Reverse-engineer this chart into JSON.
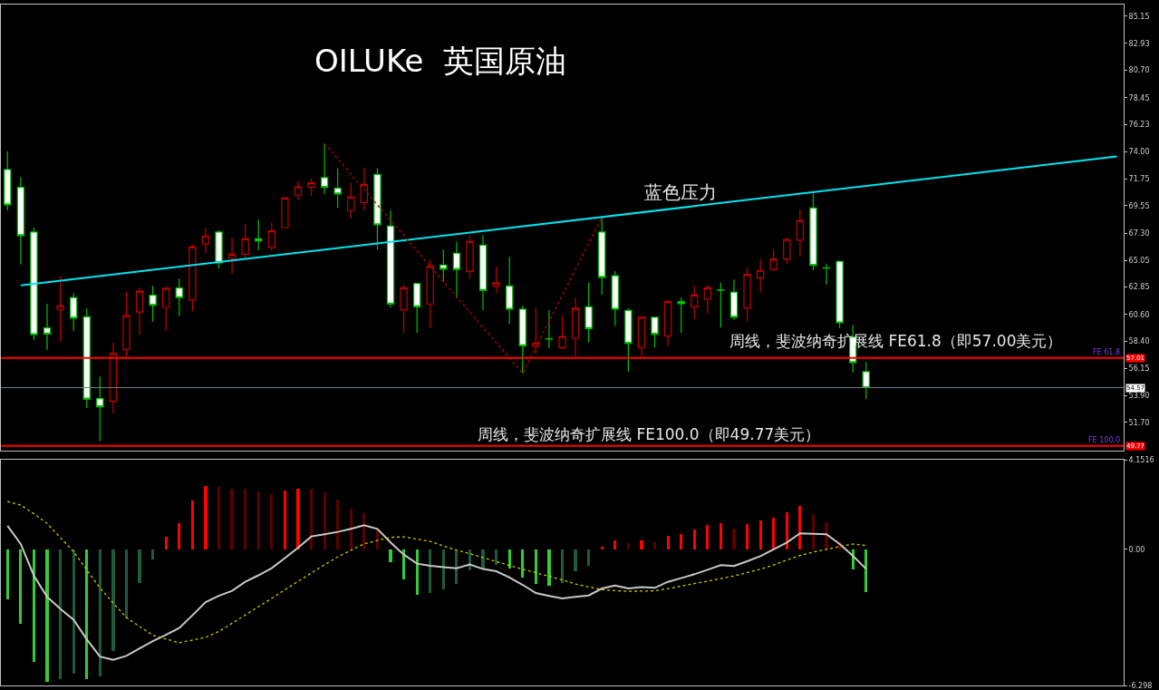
{
  "chart_data": [
    {
      "type": "candlestick",
      "title": "OILUKe  英国原油",
      "categories": [
        null,
        null,
        null,
        null,
        null,
        null,
        null,
        null,
        null,
        null,
        null,
        null,
        null,
        null,
        null,
        null,
        null,
        null,
        null,
        null,
        null,
        null,
        null,
        null,
        null,
        null,
        null,
        null,
        null,
        null,
        null,
        null,
        null,
        null,
        null,
        null,
        null,
        null,
        null,
        null,
        null,
        null,
        null,
        null,
        null,
        null,
        null,
        null,
        null,
        null,
        null,
        null,
        null,
        null,
        null,
        null,
        null,
        null,
        null,
        null,
        null,
        null,
        null,
        null,
        null,
        null,
        null,
        null,
        null,
        null,
        null,
        null,
        null,
        null,
        null,
        null,
        null,
        null,
        null,
        null,
        null,
        null,
        null,
        null,
        null
      ],
      "ohlc": [
        [
          72.53,
          74.02,
          69.17,
          69.62
        ],
        [
          71.06,
          71.88,
          64.71,
          67.08
        ],
        [
          67.38,
          67.75,
          58.49,
          58.94
        ],
        [
          59.49,
          61.48,
          57.69,
          58.99
        ],
        [
          61.01,
          63.72,
          58.37,
          61.31
        ],
        [
          61.98,
          62.35,
          59.24,
          60.29
        ],
        [
          60.41,
          61.11,
          52.89,
          53.62
        ],
        [
          53.66,
          55.51,
          50.15,
          52.99
        ],
        [
          53.44,
          58.27,
          52.44,
          57.39
        ],
        [
          57.72,
          62.47,
          57.13,
          60.49
        ],
        [
          60.79,
          62.8,
          58.92,
          62.52
        ],
        [
          62.17,
          62.97,
          60.01,
          61.35
        ],
        [
          61.18,
          62.9,
          59.24,
          62.73
        ],
        [
          62.77,
          63.55,
          60.46,
          61.98
        ],
        [
          61.78,
          66.33,
          60.86,
          66.16
        ],
        [
          66.39,
          67.75,
          65.59,
          67.06
        ],
        [
          67.38,
          67.53,
          64.39,
          64.84
        ],
        [
          65.21,
          66.93,
          63.92,
          65.56
        ],
        [
          65.56,
          68.03,
          65.21,
          66.83
        ],
        [
          66.83,
          68.42,
          65.89,
          66.65
        ],
        [
          66.11,
          68.15,
          65.83,
          67.48
        ],
        [
          67.73,
          70.24,
          67.7,
          70.19
        ],
        [
          70.42,
          71.56,
          70.02,
          71.11
        ],
        [
          71.06,
          71.81,
          70.37,
          71.43
        ],
        [
          71.86,
          74.67,
          70.52,
          71.06
        ],
        [
          70.99,
          72.63,
          69.39,
          70.52
        ],
        [
          69.15,
          71.48,
          68.5,
          70.27
        ],
        [
          69.82,
          72.7,
          69.15,
          71.31
        ],
        [
          72.13,
          72.63,
          65.96,
          67.99
        ],
        [
          67.88,
          69.19,
          61.16,
          61.46
        ],
        [
          60.96,
          63.05,
          59.07,
          62.8
        ],
        [
          63.14,
          63.22,
          59.07,
          61.23
        ],
        [
          61.46,
          65.09,
          59.46,
          64.59
        ],
        [
          64.67,
          65.94,
          63.27,
          64.32
        ],
        [
          65.64,
          66.58,
          61.95,
          64.3
        ],
        [
          64.14,
          67.08,
          63.55,
          66.61
        ],
        [
          66.31,
          67.13,
          60.96,
          62.58
        ],
        [
          62.92,
          64.54,
          62.35,
          63.18
        ],
        [
          62.95,
          65.34,
          59.82,
          61.03
        ],
        [
          61.03,
          61.31,
          55.75,
          58.02
        ],
        [
          57.95,
          61.18,
          57.37,
          58.22
        ],
        [
          58.6,
          60.93,
          57.82,
          58.57
        ],
        [
          57.87,
          60.43,
          57.75,
          58.77
        ],
        [
          58.62,
          61.98,
          57.13,
          61.11
        ],
        [
          61.23,
          63.22,
          58.29,
          59.44
        ],
        [
          67.38,
          68.57,
          62.23,
          63.65
        ],
        [
          63.79,
          64.17,
          59.66,
          61.03
        ],
        [
          60.93,
          61.11,
          55.88,
          58.22
        ],
        [
          57.87,
          60.41,
          56.99,
          60.36
        ],
        [
          60.36,
          60.41,
          57.87,
          58.96
        ],
        [
          58.82,
          61.73,
          57.99,
          61.65
        ],
        [
          61.65,
          61.98,
          59.07,
          61.48
        ],
        [
          61.23,
          62.97,
          60.23,
          62.2
        ],
        [
          61.85,
          63.05,
          60.68,
          62.8
        ],
        [
          62.61,
          63.22,
          59.54,
          62.59
        ],
        [
          62.43,
          63.47,
          60.16,
          60.36
        ],
        [
          61.11,
          64.44,
          60.04,
          63.89
        ],
        [
          63.59,
          65.14,
          62.43,
          64.22
        ],
        [
          64.3,
          65.94,
          64.19,
          65.16
        ],
        [
          65.14,
          66.95,
          64.79,
          66.76
        ],
        [
          66.71,
          69.24,
          65.38,
          68.33
        ],
        [
          69.37,
          70.57,
          64.22,
          64.64
        ],
        [
          64.43,
          64.79,
          63.05,
          64.41
        ],
        [
          64.97,
          65.04,
          59.48,
          59.91
        ],
        [
          58.74,
          59.74,
          55.8,
          56.63
        ],
        [
          55.88,
          56.68,
          53.64,
          54.57
        ],
        null,
        null,
        null,
        null,
        null,
        null,
        null,
        null,
        null,
        null,
        null,
        null,
        null,
        null,
        null,
        null,
        null,
        null,
        null
      ],
      "series": [
        {
          "type": "line",
          "color": "#00e5ee",
          "values": [
            null,
            62.99,
            null,
            null,
            null,
            null,
            null,
            null,
            null,
            null,
            null,
            null,
            null,
            null,
            null,
            null,
            null,
            null,
            null,
            null,
            null,
            null,
            null,
            null,
            null,
            null,
            null,
            null,
            null,
            null,
            null,
            null,
            null,
            null,
            null,
            null,
            null,
            null,
            null,
            null,
            null,
            null,
            null,
            null,
            null,
            null,
            null,
            null,
            null,
            null,
            null,
            null,
            null,
            null,
            null,
            null,
            null,
            null,
            null,
            null,
            null,
            null,
            null,
            null,
            null,
            null,
            null,
            null,
            null,
            null,
            null,
            null,
            null,
            null,
            null,
            null,
            null,
            null,
            null,
            null,
            null,
            null,
            null,
            null,
            73.61
          ]
        },
        {
          "type": "line",
          "color": "#c00000",
          "line_style": "dotted",
          "values": [
            null,
            null,
            null,
            null,
            null,
            null,
            null,
            null,
            null,
            null,
            null,
            null,
            null,
            null,
            null,
            null,
            null,
            null,
            null,
            null,
            null,
            null,
            null,
            null,
            74.67,
            null,
            null,
            null,
            null,
            null,
            null,
            null,
            null,
            null,
            null,
            null,
            null,
            null,
            null,
            55.75,
            null,
            null,
            null,
            null,
            null,
            68.57,
            null,
            null,
            null,
            null,
            null,
            null,
            null,
            null,
            null,
            null,
            null,
            null,
            null,
            null,
            null,
            null,
            null,
            null,
            null,
            null,
            null,
            null,
            null,
            null,
            null,
            null,
            null,
            null,
            null,
            null,
            null,
            null,
            null,
            null,
            null,
            null,
            null,
            null,
            null
          ]
        }
      ],
      "ylim": [
        49.38,
        86.12
      ],
      "yticks": [
        85.15,
        82.93,
        {
          "value": 80.7,
          "label": "80.70"
        },
        78.45,
        76.23,
        {
          "value": 74,
          "label": "74.00"
        },
        71.75,
        69.55,
        {
          "value": 67.3,
          "label": "67.30"
        },
        65.05,
        62.85,
        {
          "value": 60.6,
          "label": "60.60"
        },
        {
          "value": 58.4,
          "label": "58.40"
        },
        56.15,
        {
          "value": 53.9,
          "label": "53.90"
        },
        {
          "value": 51.7,
          "label": "51.70"
        }
      ],
      "ref_lines": [
        {
          "axis": "y",
          "value": 57.01,
          "label": "FE 61.8",
          "color": "#ff0000"
        },
        {
          "axis": "y",
          "value": 49.77,
          "label": "FE 100.0",
          "color": "#ff0000"
        },
        {
          "axis": "y",
          "value": 54.57,
          "color": "#6e7b8b"
        }
      ],
      "annotations": [
        "蓝色压力",
        "周线，斐波纳奇扩展线 FE61.8（即57.00美元）",
        "周线，斐波纳奇扩展线 FE100.0（即49.77美元）",
        {
          "text": "57.01",
          "y": 57.01
        },
        {
          "text": "49.77",
          "y": 49.77
        },
        {
          "text": "54.57",
          "y": 54.57
        }
      ],
      "tick_labels": "y",
      "grid": false
    },
    {
      "type": "bar",
      "categories": [
        null,
        null,
        null,
        null,
        null,
        null,
        null,
        null,
        null,
        null,
        null,
        null,
        null,
        null,
        null,
        null,
        null,
        null,
        null,
        null,
        null,
        null,
        null,
        null,
        null,
        null,
        null,
        null,
        null,
        null,
        null,
        null,
        null,
        null,
        null,
        null,
        null,
        null,
        null,
        null,
        null,
        null,
        null,
        null,
        null,
        null,
        null,
        null,
        null,
        null,
        null,
        null,
        null,
        null,
        null,
        null,
        null,
        null,
        null,
        null,
        null,
        null,
        null,
        null,
        null,
        null,
        null,
        null,
        null,
        null,
        null,
        null,
        null,
        null,
        null,
        null,
        null,
        null,
        null,
        null,
        null,
        null,
        null,
        null,
        null
      ],
      "series": [
        {
          "values": [
            -2.31,
            -3.46,
            -5.21,
            -6.12,
            -6.02,
            -5.74,
            -6.01,
            -5.87,
            -4.72,
            -3.18,
            -1.57,
            -0.45,
            0.58,
            1.22,
            2.26,
            2.94,
            2.9,
            2.81,
            2.81,
            2.67,
            2.56,
            2.74,
            2.81,
            2.81,
            2.63,
            2.32,
            1.9,
            1.69,
            0.92,
            -0.59,
            -1.4,
            -2.09,
            -2.02,
            -1.85,
            -1.6,
            -0.98,
            -0.91,
            -0.7,
            -0.87,
            -1.32,
            -1.6,
            -1.67,
            -1.54,
            -1.01,
            -0.76,
            0.11,
            0.42,
            0.28,
            0.42,
            0.35,
            0.63,
            0.73,
            0.92,
            1.12,
            1.22,
            0.97,
            1.19,
            1.34,
            1.47,
            1.72,
            2.0,
            1.65,
            1.26,
            0.32,
            -0.91,
            -1.96,
            null,
            null,
            null,
            null,
            null,
            null,
            null,
            null,
            null,
            null,
            null,
            null,
            null,
            null,
            null,
            null,
            null,
            null,
            null
          ],
          "colors": [
            "#32cd32",
            "#32cd32",
            "#32cd32",
            "#32cd32",
            "#1e5a3c",
            "#1e5a3c",
            "#32cd32",
            "#1e5a3c",
            "#1e5a3c",
            "#1e5a3c",
            "#1e5a3c",
            "#1e5a3c",
            "#ff0000",
            "#ff0000",
            "#ff0000",
            "#ff0000",
            "#5a0000",
            "#5a0000",
            "#5a0000",
            "#5a0000",
            "#5a0000",
            "#ff0000",
            "#ff0000",
            "#5a0000",
            "#5a0000",
            "#5a0000",
            "#5a0000",
            "#5a0000",
            "#5a0000",
            "#32cd32",
            "#32cd32",
            "#32cd32",
            "#1e5a3c",
            "#1e5a3c",
            "#1e5a3c",
            "#1e5a3c",
            "#1e5a3c",
            "#1e5a3c",
            "#32cd32",
            "#32cd32",
            "#32cd32",
            "#32cd32",
            "#1e5a3c",
            "#1e5a3c",
            "#1e5a3c",
            "#ff0000",
            "#ff0000",
            "#5a0000",
            "#ff0000",
            "#5a0000",
            "#ff0000",
            "#ff0000",
            "#ff0000",
            "#ff0000",
            "#ff0000",
            "#5a0000",
            "#ff0000",
            "#ff0000",
            "#ff0000",
            "#ff0000",
            "#ff0000",
            "#5a0000",
            "#5a0000",
            "#5a0000",
            "#32cd32",
            "#32cd32",
            null,
            null,
            null,
            null,
            null,
            null,
            null,
            null,
            null,
            null,
            null,
            null,
            null,
            null,
            null,
            null,
            null,
            null,
            null
          ]
        },
        {
          "type": "line",
          "color": "#c8c8c8",
          "values": [
            1.09,
            0.25,
            -1.22,
            -2.2,
            -2.75,
            -3.25,
            -4.16,
            -4.96,
            -5.11,
            -4.93,
            -4.58,
            -4.25,
            -3.95,
            -3.64,
            -3.05,
            -2.44,
            -2.15,
            -1.92,
            -1.5,
            -1.2,
            -0.87,
            -0.4,
            0.08,
            0.6,
            0.7,
            0.81,
            0.95,
            1.12,
            0.95,
            0.32,
            -0.24,
            -0.66,
            -0.76,
            -0.82,
            -0.87,
            -0.7,
            -0.91,
            -1.01,
            -1.3,
            -1.64,
            -2.02,
            -2.15,
            -2.27,
            -2.2,
            -2.13,
            -1.81,
            -1.67,
            -1.81,
            -1.74,
            -1.78,
            -1.5,
            -1.33,
            -1.15,
            -0.94,
            -0.73,
            -0.77,
            -0.55,
            -0.31,
            0.0,
            0.32,
            0.74,
            0.72,
            0.7,
            0.25,
            -0.3,
            -0.9,
            null,
            null,
            null,
            null,
            null,
            null,
            null,
            null,
            null,
            null,
            null,
            null,
            null,
            null,
            null,
            null,
            null,
            null,
            null
          ]
        },
        {
          "type": "line",
          "color": "#c8c800",
          "line_style": "dotted",
          "values": [
            2.22,
            2.05,
            1.65,
            1.2,
            0.55,
            -0.1,
            -0.95,
            -1.78,
            -2.48,
            -3.15,
            -3.57,
            -3.97,
            -4.15,
            -4.32,
            -4.2,
            -4.07,
            -3.8,
            -3.42,
            -3.04,
            -2.65,
            -2.27,
            -1.87,
            -1.48,
            -1.09,
            -0.71,
            -0.35,
            -0.04,
            0.26,
            0.41,
            0.56,
            0.58,
            0.48,
            0.37,
            0.16,
            -0.03,
            -0.2,
            -0.38,
            -0.56,
            -0.74,
            -0.92,
            -1.08,
            -1.25,
            -1.41,
            -1.6,
            -1.74,
            -1.86,
            -1.91,
            -1.94,
            -1.93,
            -1.92,
            -1.82,
            -1.7,
            -1.58,
            -1.47,
            -1.35,
            -1.23,
            -1.07,
            -0.92,
            -0.72,
            -0.49,
            -0.28,
            -0.12,
            0.0,
            0.13,
            0.25,
            0.18,
            null,
            null,
            null,
            null,
            null,
            null,
            null,
            null,
            null,
            null,
            null,
            null,
            null,
            null,
            null,
            null,
            null,
            null,
            null
          ]
        }
      ],
      "ylim": [
        -6.298,
        4.1516
      ],
      "yticks": [
        4.1516,
        {
          "value": 0,
          "label": "0.00"
        },
        -6.298
      ],
      "tick_labels": "y",
      "grid": false
    }
  ]
}
